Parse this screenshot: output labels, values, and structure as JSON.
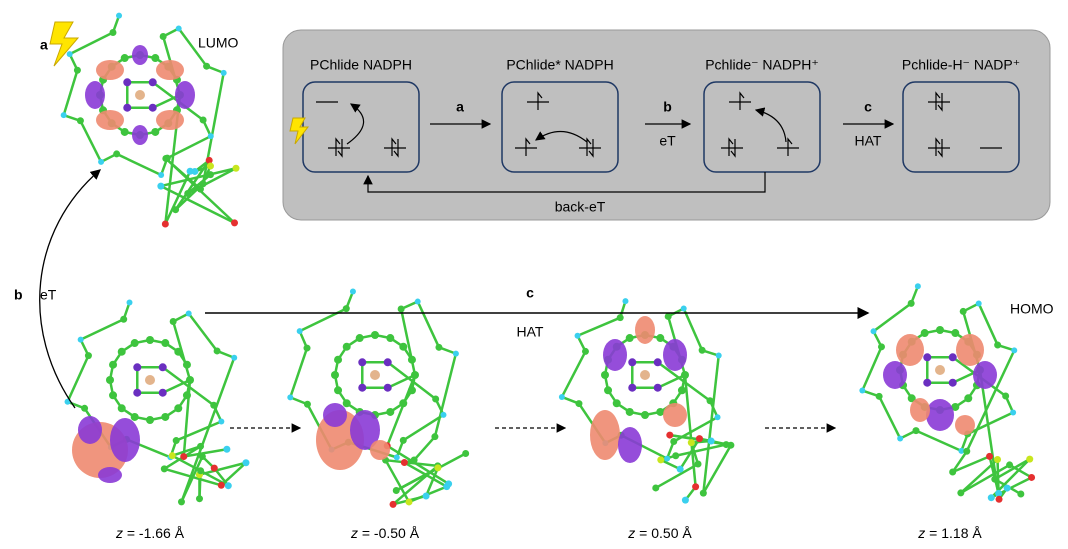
{
  "lumo": {
    "step": "a",
    "label": "LUMO"
  },
  "transfer": {
    "step": "b",
    "label": "eT"
  },
  "hat": {
    "step": "c",
    "label": "HAT"
  },
  "homo_label": "HOMO",
  "inset": {
    "states": [
      "PChlide  NADPH",
      "PChlide* NADPH",
      "Pchlide⁻  NADPH⁺",
      "Pchlide-H⁻ NADP⁺"
    ],
    "steps": [
      {
        "label": "a"
      },
      {
        "label": "b",
        "sublabel": "eT"
      },
      {
        "label": "c",
        "sublabel": "HAT"
      }
    ],
    "back_label": "back-eT"
  },
  "frames": [
    {
      "var": "z",
      "value": " = -1.66 Å"
    },
    {
      "var": "z",
      "value": " = -0.50 Å"
    },
    {
      "var": "z",
      "value": " = 0.50 Å"
    },
    {
      "var": "z",
      "value": " = 1.18 Å"
    }
  ]
}
